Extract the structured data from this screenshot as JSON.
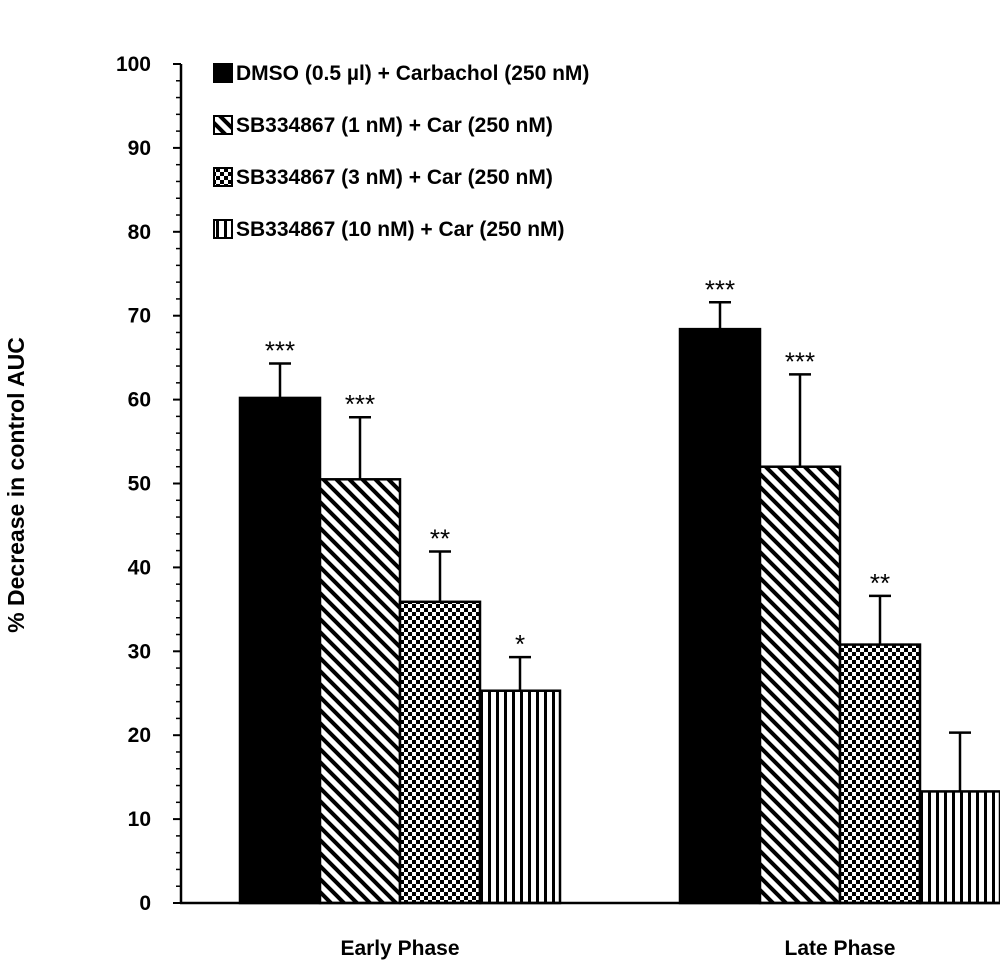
{
  "chart_data": {
    "type": "bar",
    "title": "",
    "xlabel": "",
    "ylabel": "% Decrease in control AUC",
    "ylim": [
      0,
      100
    ],
    "yticks": [
      0,
      10,
      20,
      30,
      40,
      50,
      60,
      70,
      80,
      90,
      100
    ],
    "categories": [
      "Early Phase",
      "Late Phase"
    ],
    "legend_position": "top-left",
    "grid": false,
    "series": [
      {
        "name": "DMSO (0.5 µl) + Carbachol (250 nM)",
        "fill": "solid",
        "values": [
          60.2,
          68.4
        ],
        "errors": [
          4.1,
          3.2
        ],
        "significance": [
          "***",
          "***"
        ]
      },
      {
        "name": "SB334867 (1 nM) + Car (250 nM)",
        "fill": "diagonal-hatch",
        "values": [
          50.5,
          52.0
        ],
        "errors": [
          7.4,
          11.0
        ],
        "significance": [
          "***",
          "***"
        ]
      },
      {
        "name": "SB334867 (3 nM) + Car (250 nM)",
        "fill": "checker",
        "values": [
          35.9,
          30.8
        ],
        "errors": [
          6.0,
          5.8
        ],
        "significance": [
          "**",
          "**"
        ]
      },
      {
        "name": "SB334867 (10 nM) + Car (250 nM)",
        "fill": "vertical-lines",
        "values": [
          25.3,
          13.3
        ],
        "errors": [
          4.0,
          7.0
        ],
        "significance": [
          "*",
          ""
        ]
      }
    ]
  }
}
